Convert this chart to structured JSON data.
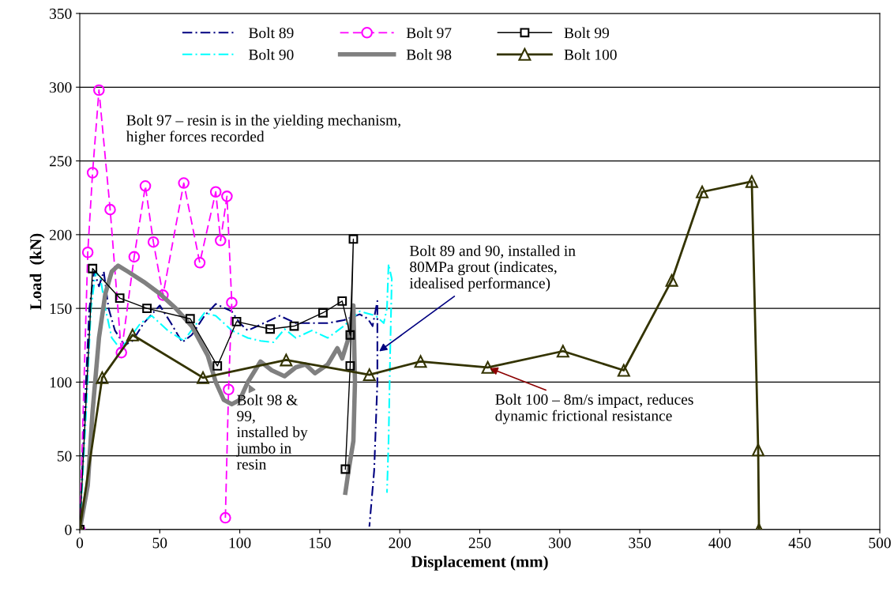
{
  "chart_data": {
    "type": "line",
    "xlabel": "Displacement (mm)",
    "ylabel": "Load  (kN)",
    "xlim": [
      0,
      500
    ],
    "ylim": [
      0,
      350
    ],
    "xticks": [
      0,
      50,
      100,
      150,
      200,
      250,
      300,
      350,
      400,
      450,
      500
    ],
    "yticks": [
      0,
      50,
      100,
      150,
      200,
      250,
      300,
      350
    ],
    "grid": "y",
    "legend": "top",
    "series": [
      {
        "name": "Bolt 89",
        "color": "#000080",
        "line_style": "dashdot",
        "marker": "none",
        "x": [
          0,
          3,
          6,
          9,
          12,
          15,
          18,
          22,
          28,
          33,
          40,
          50,
          57,
          64,
          70,
          78,
          85,
          95,
          100,
          105,
          115,
          125,
          135,
          145,
          155,
          165,
          175,
          180,
          183,
          186,
          186,
          184,
          181
        ],
        "values": [
          0,
          80,
          150,
          175,
          165,
          175,
          150,
          135,
          125,
          128,
          140,
          152,
          140,
          127,
          132,
          145,
          153,
          148,
          140,
          135,
          140,
          145,
          140,
          140,
          140,
          142,
          146,
          143,
          138,
          155,
          100,
          40,
          2
        ]
      },
      {
        "name": "Bolt 90",
        "color": "#00ffff",
        "line_style": "dashdot",
        "marker": "none",
        "x": [
          0,
          4,
          7,
          10,
          13,
          16,
          20,
          25,
          30,
          38,
          45,
          55,
          65,
          78,
          85,
          95,
          105,
          113,
          121,
          128,
          135,
          145,
          155,
          165,
          175,
          185,
          190,
          192,
          193,
          195,
          194,
          193,
          192
        ],
        "values": [
          0,
          80,
          150,
          175,
          170,
          150,
          130,
          123,
          128,
          140,
          145,
          135,
          128,
          147,
          145,
          135,
          130,
          128,
          127,
          136,
          130,
          135,
          130,
          138,
          148,
          145,
          140,
          150,
          180,
          170,
          120,
          60,
          25
        ]
      },
      {
        "name": "Bolt 97",
        "color": "#ff00ff",
        "line_style": "dashed",
        "marker": "circle",
        "x": [
          0,
          5,
          8,
          12,
          19,
          26,
          34,
          41,
          46,
          52,
          65,
          75,
          85,
          88,
          92,
          95,
          93,
          91
        ],
        "values": [
          0,
          188,
          242,
          298,
          217,
          120,
          185,
          233,
          195,
          159,
          235,
          181,
          229,
          196,
          226,
          154,
          95,
          8
        ]
      },
      {
        "name": "Bolt 98",
        "color": "#808080",
        "line_style": "solid",
        "marker": "none",
        "x": [
          0,
          5,
          8,
          12,
          16,
          20,
          24,
          30,
          40,
          50,
          60,
          70,
          80,
          85,
          90,
          95,
          100,
          105,
          113,
          120,
          128,
          135,
          141,
          147,
          155,
          161,
          164,
          168,
          171,
          172,
          171,
          168,
          166
        ],
        "values": [
          0,
          30,
          80,
          130,
          160,
          175,
          179,
          175,
          168,
          160,
          150,
          138,
          118,
          100,
          88,
          85,
          88,
          100,
          114,
          108,
          104,
          110,
          112,
          106,
          112,
          123,
          116,
          130,
          152,
          100,
          60,
          40,
          25
        ]
      },
      {
        "name": "Bolt 99",
        "color": "#000000",
        "line_style": "solid",
        "marker": "square",
        "x": [
          0,
          8,
          25,
          42,
          69,
          86,
          98,
          119,
          134,
          152,
          164,
          169,
          171,
          169,
          166
        ],
        "values": [
          0,
          177,
          157,
          150,
          143,
          111,
          141,
          136,
          138,
          147,
          155,
          132,
          197,
          111,
          41
        ]
      },
      {
        "name": "Bolt 100",
        "color": "#333300",
        "line_style": "solid",
        "marker": "triangle",
        "x": [
          0,
          14,
          33,
          77,
          129,
          181,
          213,
          255,
          302,
          340,
          370,
          389,
          420,
          424,
          424.5
        ],
        "values": [
          0,
          103,
          132,
          103,
          115,
          105,
          114,
          110,
          121,
          108,
          169,
          229,
          236,
          54,
          0
        ]
      }
    ],
    "annotations": [
      "Bolt 97 – resin is in the yielding mechanism,\nhigher forces recorded",
      {
        "text": "Bolt 89 and 90, installed in\n80MPa grout (indicates,\nidealised performance)",
        "x": 186,
        "y": 120
      },
      {
        "text": "Bolt 98 &\n99,\ninstalled by\njumbo in\nresin",
        "x": 105,
        "y": 100
      },
      {
        "text": "Bolt 100 – 8m/s impact, reduces\ndynamic frictional resistance",
        "x": 255,
        "y": 110
      }
    ]
  }
}
